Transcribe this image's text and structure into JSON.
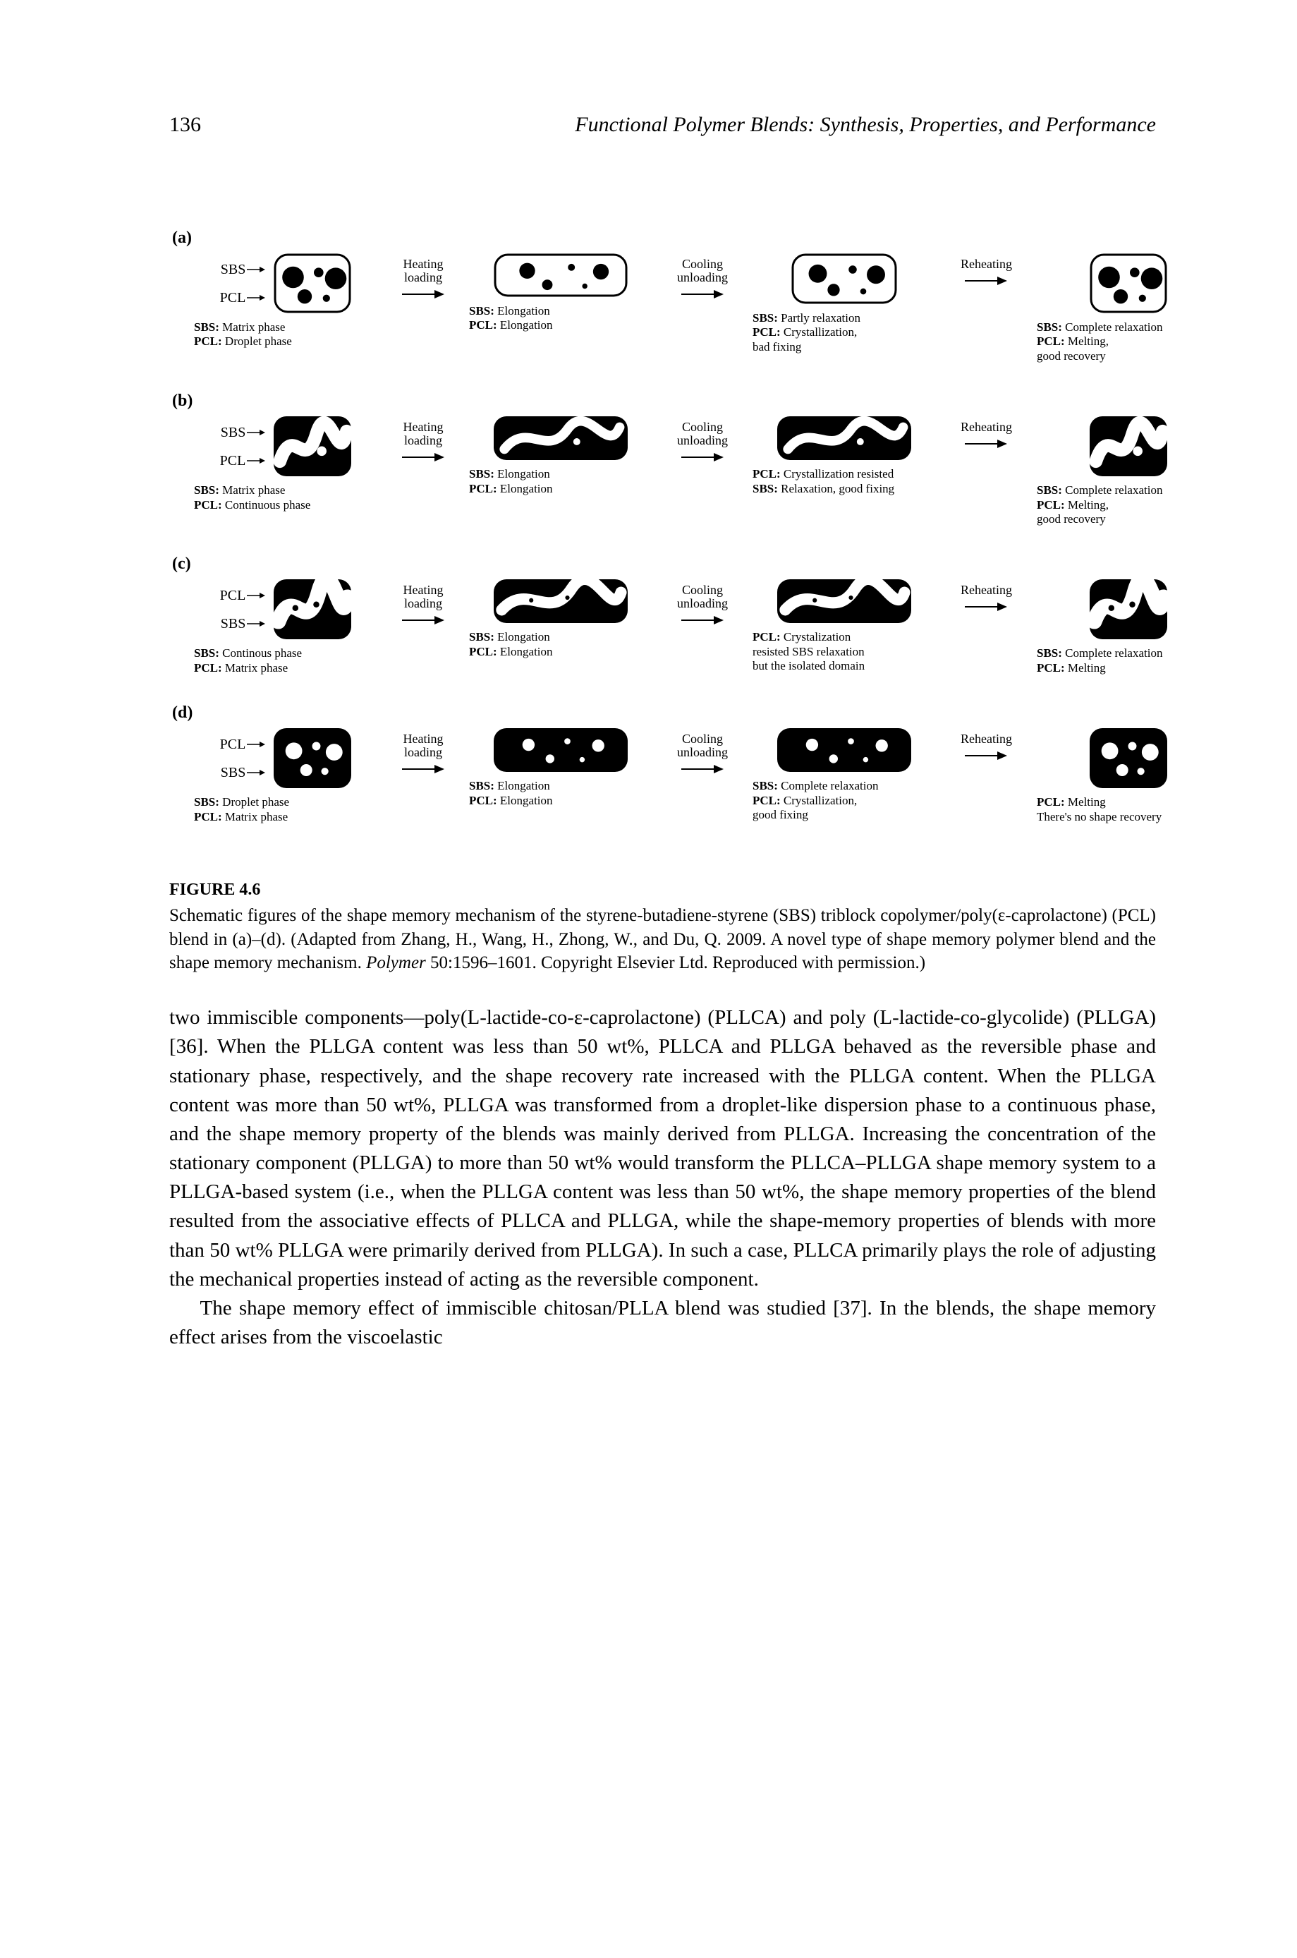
{
  "page_number": "136",
  "running_title": "Functional Polymer Blends: Synthesis, Properties, and Performance",
  "figure": {
    "label_title": "FIGURE 4.6",
    "caption": "Schematic figures of the shape memory mechanism of the styrene-butadiene-styrene (SBS) triblock copolymer/poly(ε-caprolactone) (PCL) blend in (a)–(d). (Adapted from Zhang, H., Wang, H., Zhong, W., and Du, Q. 2009. A novel type of shape memory polymer blend and the shape memory mechanism. ",
    "caption_italic": "Polymer",
    "caption_tail": " 50:1596–1601. Copyright Elsevier Ltd. Reproduced with permission.)",
    "arrows": [
      "Heating\nloading",
      "Cooling\nunloading",
      "Reheating"
    ],
    "rows": {
      "a": {
        "label": "(a)",
        "side": [
          "SBS",
          "PCL"
        ],
        "svg_type": "droplet",
        "stages": [
          {
            "shape": "square",
            "cap": [
              "SBS: Matrix phase",
              "PCL: Droplet phase"
            ]
          },
          {
            "shape": "wide",
            "cap": [
              "SBS: Elongation",
              "PCL: Elongation"
            ]
          },
          {
            "shape": "mid",
            "cap": [
              "SBS: Partly relaxation",
              "PCL: Crystallization,",
              "bad fixing"
            ]
          },
          {
            "shape": "square",
            "cap": [
              "SBS: Complete relaxation",
              "PCL: Melting,",
              "good recovery"
            ]
          }
        ]
      },
      "b": {
        "label": "(b)",
        "side": [
          "SBS",
          "PCL"
        ],
        "svg_type": "continuous_black",
        "stages": [
          {
            "shape": "square",
            "cap": [
              "SBS: Matrix phase",
              "PCL: Continuous phase"
            ]
          },
          {
            "shape": "wide",
            "cap": [
              "SBS: Elongation",
              "PCL: Elongation"
            ]
          },
          {
            "shape": "wide",
            "cap": [
              "PCL: Crystallization resisted",
              "SBS: Relaxation, good fixing"
            ]
          },
          {
            "shape": "square",
            "cap": [
              "SBS: Complete relaxation",
              "PCL: Melting,",
              "good recovery"
            ]
          }
        ]
      },
      "c": {
        "label": "(c)",
        "side": [
          "PCL",
          "SBS"
        ],
        "svg_type": "continuous_white",
        "stages": [
          {
            "shape": "square",
            "cap": [
              "SBS: Continous phase",
              "PCL: Matrix phase"
            ]
          },
          {
            "shape": "wide",
            "cap": [
              "SBS: Elongation",
              "PCL: Elongation"
            ]
          },
          {
            "shape": "wide",
            "cap": [
              "PCL: Crystalization",
              "resisted SBS relaxation",
              "but the isolated domain"
            ]
          },
          {
            "shape": "square",
            "cap": [
              "SBS: Complete relaxation",
              "PCL: Melting"
            ]
          }
        ]
      },
      "d": {
        "label": "(d)",
        "side": [
          "PCL",
          "SBS"
        ],
        "svg_type": "droplet_inv",
        "stages": [
          {
            "shape": "square",
            "cap": [
              "SBS: Droplet phase",
              "PCL: Matrix phase"
            ]
          },
          {
            "shape": "wide",
            "cap": [
              "SBS: Elongation",
              "PCL: Elongation"
            ]
          },
          {
            "shape": "wide",
            "cap": [
              "SBS: Complete relaxation",
              "PCL: Crystallization,",
              "good fixing"
            ]
          },
          {
            "shape": "square",
            "cap": [
              "PCL: Melting",
              "There's no shape recovery"
            ]
          }
        ]
      }
    }
  },
  "body_paragraphs": [
    "two immiscible components—poly(L-lactide-co-ε-caprolactone) (PLLCA) and poly (L-lactide-co-glycolide) (PLLGA) [36]. When the PLLGA content was less than 50 wt%, PLLCA and PLLGA behaved as the reversible phase and stationary phase, respectively, and the shape recovery rate increased with the PLLGA content. When the PLLGA content was more than 50 wt%, PLLGA was transformed from a droplet-like dispersion phase to a continuous phase, and the shape memory property of the blends was mainly derived from PLLGA. Increasing the concentration of the stationary component (PLLGA) to more than 50 wt% would transform the PLLCA–PLLGA shape memory system to a PLLGA-based system (i.e., when the PLLGA content was less than 50 wt%, the shape memory properties of the blend resulted from the associative effects of PLLCA and PLLGA, while the shape-memory properties of blends with more than 50 wt% PLLGA were primarily derived from PLLGA). In such a case, PLLCA primarily plays the role of adjusting the mechanical properties instead of acting as the reversible component.",
    "The shape memory effect of immiscible chitosan/PLLA blend was studied [37]. In the blends, the shape memory effect arises from the viscoelastic"
  ]
}
